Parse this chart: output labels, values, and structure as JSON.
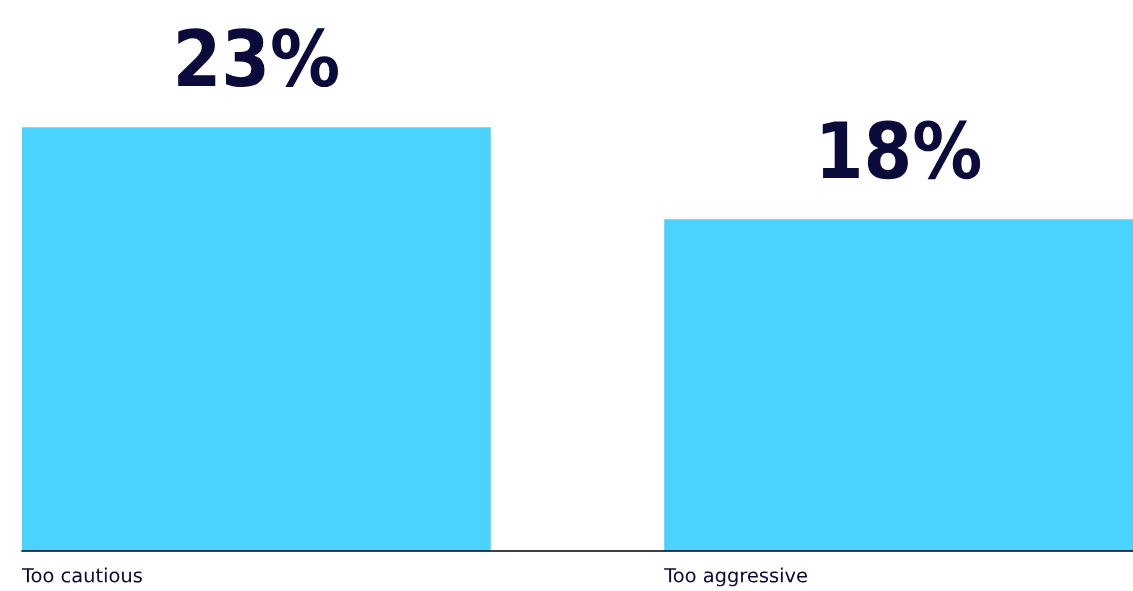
{
  "chart_data": {
    "type": "bar",
    "categories": [
      "Too cautious",
      "Too aggressive"
    ],
    "values": [
      23,
      18
    ],
    "value_labels": [
      "23%",
      "18%"
    ],
    "color": "#4bd3ff"
  }
}
